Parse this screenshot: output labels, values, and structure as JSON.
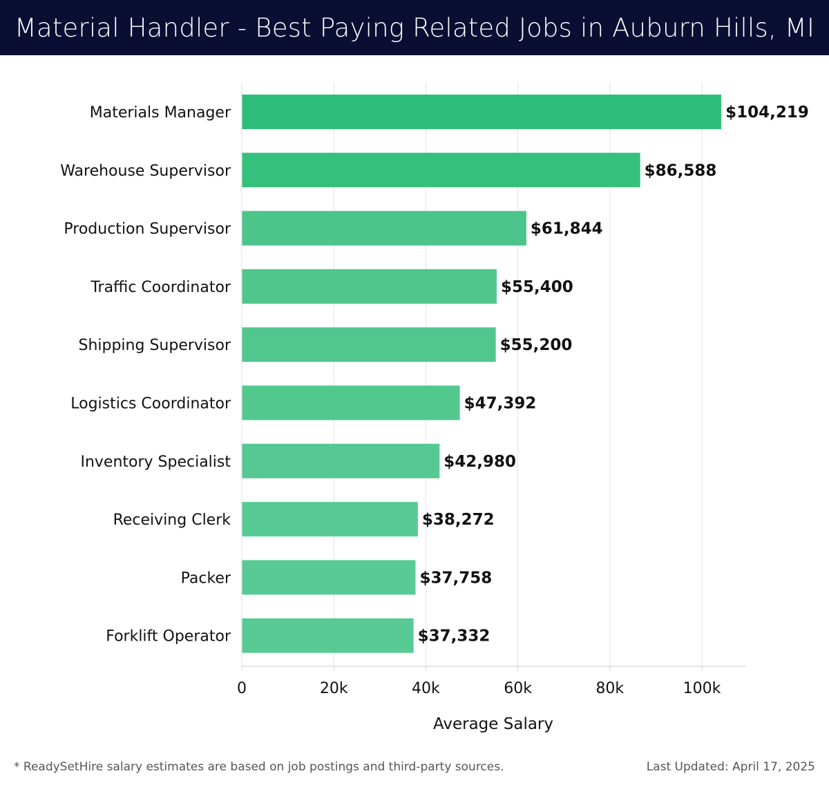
{
  "header": {
    "title": "Material Handler - Best Paying Related Jobs in Auburn Hills, MI"
  },
  "chart_data": {
    "type": "bar",
    "orientation": "horizontal",
    "categories": [
      "Materials Manager",
      "Warehouse Supervisor",
      "Production Supervisor",
      "Traffic Coordinator",
      "Shipping Supervisor",
      "Logistics Coordinator",
      "Inventory Specialist",
      "Receiving Clerk",
      "Packer",
      "Forklift Operator"
    ],
    "values": [
      104219,
      86588,
      61844,
      55400,
      55200,
      47392,
      42980,
      38272,
      37758,
      37332
    ],
    "data_labels": [
      "$104,219",
      "$86,588",
      "$61,844",
      "$55,400",
      "$55,200",
      "$47,392",
      "$42,980",
      "$38,272",
      "$37,758",
      "$37,332"
    ],
    "xlabel": "Average Salary",
    "ylabel": "",
    "xlim": [
      0,
      110000
    ],
    "x_ticks": [
      0,
      20000,
      40000,
      60000,
      80000,
      100000
    ],
    "x_tick_labels": [
      "0",
      "20k",
      "40k",
      "60k",
      "80k",
      "100k"
    ],
    "grid": "vertical",
    "bar_colors": [
      "#2ebd78",
      "#35c07c",
      "#4bc58a",
      "#4fc78c",
      "#50c78d",
      "#52c88f",
      "#55c991",
      "#57ca93",
      "#58ca94",
      "#58ca94"
    ]
  },
  "footer": {
    "note": "* ReadySetHire salary estimates are based on job postings and third-party sources.",
    "updated": "Last Updated: April 17, 2025"
  },
  "colors": {
    "header_bg": "#0b0e33",
    "header_text": "#ffffff",
    "grid": "#e2e2e2",
    "axis": "#cccccc",
    "text": "#111111",
    "footer_text": "#555555"
  }
}
